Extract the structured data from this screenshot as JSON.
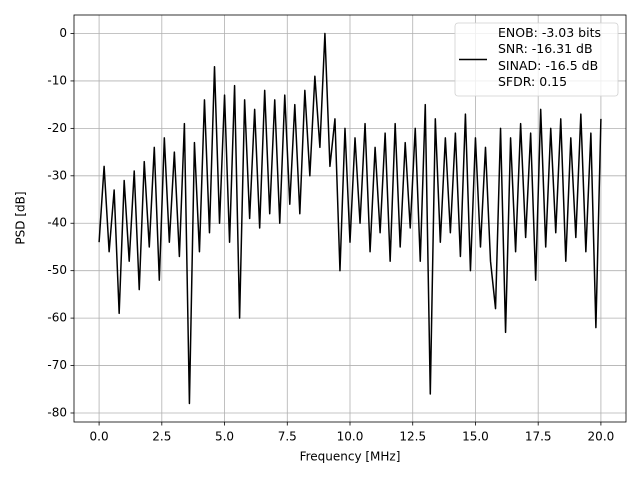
{
  "chart_data": {
    "type": "line",
    "xlabel": "Frequency [MHz]",
    "ylabel": "PSD [dB]",
    "x": [
      0.0,
      0.2,
      0.4,
      0.6,
      0.8,
      1.0,
      1.2,
      1.4,
      1.6,
      1.8,
      2.0,
      2.2,
      2.4,
      2.6,
      2.8,
      3.0,
      3.2,
      3.4,
      3.6,
      3.8,
      4.0,
      4.2,
      4.4,
      4.6,
      4.8,
      5.0,
      5.2,
      5.4,
      5.6,
      5.8,
      6.0,
      6.2,
      6.4,
      6.6,
      6.8,
      7.0,
      7.2,
      7.4,
      7.6,
      7.8,
      8.0,
      8.2,
      8.4,
      8.6,
      8.8,
      9.0,
      9.2,
      9.4,
      9.6,
      9.8,
      10.0,
      10.2,
      10.4,
      10.6,
      10.8,
      11.0,
      11.2,
      11.4,
      11.6,
      11.8,
      12.0,
      12.2,
      12.4,
      12.6,
      12.8,
      13.0,
      13.2,
      13.4,
      13.6,
      13.8,
      14.0,
      14.2,
      14.4,
      14.6,
      14.8,
      15.0,
      15.2,
      15.4,
      15.6,
      15.8,
      16.0,
      16.2,
      16.4,
      16.6,
      16.8,
      17.0,
      17.2,
      17.4,
      17.6,
      17.8,
      18.0,
      18.2,
      18.4,
      18.6,
      18.8,
      19.0,
      19.2,
      19.4,
      19.6,
      19.8,
      20.0
    ],
    "series": [
      {
        "name": "ENOB: -3.03 bits\nSNR: -16.31 dB\nSINAD: -16.5 dB\nSFDR: 0.15",
        "color": "#000000",
        "values": [
          -44,
          -28,
          -46,
          -33,
          -59,
          -31,
          -48,
          -29,
          -54,
          -27,
          -45,
          -24,
          -52,
          -22,
          -44,
          -25,
          -47,
          -19,
          -78,
          -23,
          -46,
          -14,
          -42,
          -7,
          -40,
          -13,
          -44,
          -11,
          -60,
          -14,
          -39,
          -16,
          -41,
          -12,
          -38,
          -14,
          -40,
          -13,
          -36,
          -15,
          -38,
          -12,
          -30,
          -9,
          -24,
          0,
          -28,
          -18,
          -50,
          -20,
          -44,
          -22,
          -40,
          -19,
          -46,
          -24,
          -42,
          -21,
          -48,
          -19,
          -45,
          -23,
          -41,
          -20,
          -48,
          -15,
          -76,
          -18,
          -44,
          -22,
          -42,
          -21,
          -47,
          -17,
          -50,
          -22,
          -45,
          -24,
          -48,
          -58,
          -20,
          -63,
          -22,
          -46,
          -19,
          -43,
          -21,
          -52,
          -16,
          -45,
          -20,
          -42,
          -18,
          -48,
          -22,
          -43,
          -17,
          -46,
          -21,
          -62,
          -18
        ]
      }
    ],
    "xlim": [
      -1,
      21
    ],
    "ylim": [
      -81.9,
      3.9
    ],
    "xticks": [
      {
        "value": 0,
        "label": "0.0"
      },
      2.5,
      {
        "value": 5,
        "label": "5.0"
      },
      7.5,
      {
        "value": 10,
        "label": "10.0"
      },
      12.5,
      {
        "value": 15,
        "label": "15.0"
      },
      17.5,
      {
        "value": 20,
        "label": "20.0"
      }
    ],
    "yticks": [
      0,
      -10,
      -20,
      -30,
      -40,
      -50,
      -60,
      -70,
      -80
    ],
    "grid": true,
    "legend": "upper right"
  }
}
